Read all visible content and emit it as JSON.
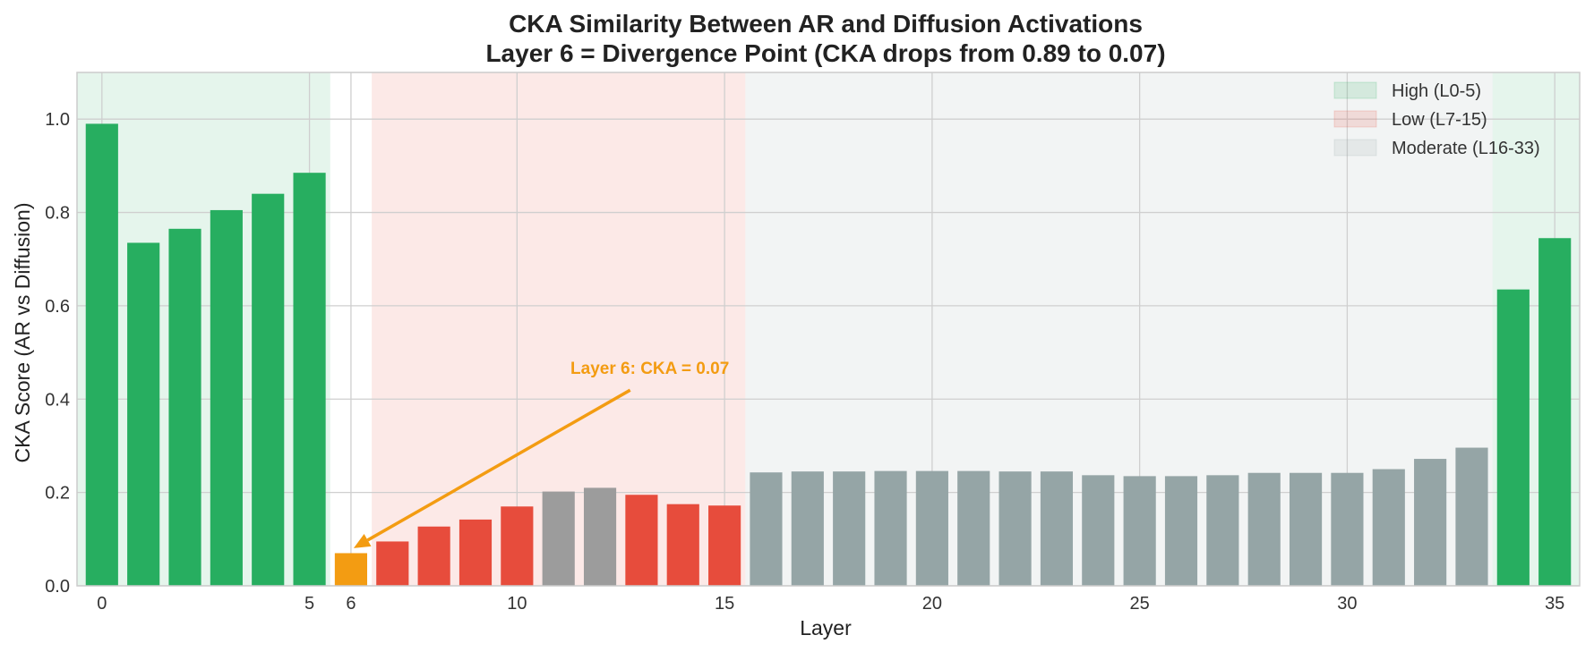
{
  "chart_data": {
    "type": "bar",
    "title_lines": [
      "CKA Similarity Between AR and Diffusion Activations",
      "Layer 6 = Divergence Point (CKA drops from 0.89 to 0.07)"
    ],
    "xlabel": "Layer",
    "ylabel": "CKA Score (AR vs Diffusion)",
    "xlim": [
      -0.6,
      35.6
    ],
    "ylim": [
      0,
      1.1
    ],
    "x_ticks": [
      0,
      5,
      6,
      10,
      15,
      20,
      25,
      30,
      35
    ],
    "y_ticks": [
      "0.0",
      "0.2",
      "0.4",
      "0.6",
      "0.8",
      "1.0"
    ],
    "y_tick_values": [
      0,
      0.2,
      0.4,
      0.6,
      0.8,
      1.0
    ],
    "grid": true,
    "layers": [
      0,
      1,
      2,
      3,
      4,
      5,
      6,
      7,
      8,
      9,
      10,
      11,
      12,
      13,
      14,
      15,
      16,
      17,
      18,
      19,
      20,
      21,
      22,
      23,
      24,
      25,
      26,
      27,
      28,
      29,
      30,
      31,
      32,
      33,
      34,
      35
    ],
    "values": [
      0.99,
      0.735,
      0.765,
      0.805,
      0.84,
      0.885,
      0.07,
      0.095,
      0.127,
      0.142,
      0.17,
      0.202,
      0.21,
      0.195,
      0.175,
      0.172,
      0.243,
      0.245,
      0.245,
      0.246,
      0.246,
      0.246,
      0.245,
      0.245,
      0.237,
      0.235,
      0.235,
      0.237,
      0.242,
      0.242,
      0.242,
      0.25,
      0.272,
      0.296,
      0.635,
      0.745
    ],
    "bar_colors": [
      "#27ae60",
      "#27ae60",
      "#27ae60",
      "#27ae60",
      "#27ae60",
      "#27ae60",
      "#f39c12",
      "#e74c3c",
      "#e74c3c",
      "#e74c3c",
      "#e74c3c",
      "#9c9c9c",
      "#9c9c9c",
      "#e74c3c",
      "#e74c3c",
      "#e74c3c",
      "#95a5a6",
      "#95a5a6",
      "#95a5a6",
      "#95a5a6",
      "#95a5a6",
      "#95a5a6",
      "#95a5a6",
      "#95a5a6",
      "#95a5a6",
      "#95a5a6",
      "#95a5a6",
      "#95a5a6",
      "#95a5a6",
      "#95a5a6",
      "#95a5a6",
      "#95a5a6",
      "#95a5a6",
      "#95a5a6",
      "#27ae60",
      "#27ae60"
    ],
    "regions": [
      {
        "label": "High (L0-5)",
        "start": -0.6,
        "end": 5.5,
        "color": "#27ae60",
        "opacity": 0.12
      },
      {
        "label": "Low (L7-15)",
        "start": 6.5,
        "end": 15.5,
        "color": "#e74c3c",
        "opacity": 0.12
      },
      {
        "label": "Moderate (L16-33)",
        "start": 15.5,
        "end": 33.5,
        "color": "#95a5a6",
        "opacity": 0.12
      },
      {
        "label": "",
        "start": 33.5,
        "end": 35.6,
        "color": "#27ae60",
        "opacity": 0.12
      }
    ],
    "legend": {
      "position": "top-right",
      "entries": [
        "High (L0-5)",
        "Low (L7-15)",
        "Moderate (L16-33)"
      ],
      "colors": [
        "#27ae60",
        "#e74c3c",
        "#95a5a6"
      ]
    },
    "annotation": {
      "text": "Layer 6: CKA = 0.07",
      "target_x": 6,
      "target_y": 0.075,
      "text_x": 13.2,
      "text_y": 0.45,
      "color": "#f39c12"
    }
  }
}
